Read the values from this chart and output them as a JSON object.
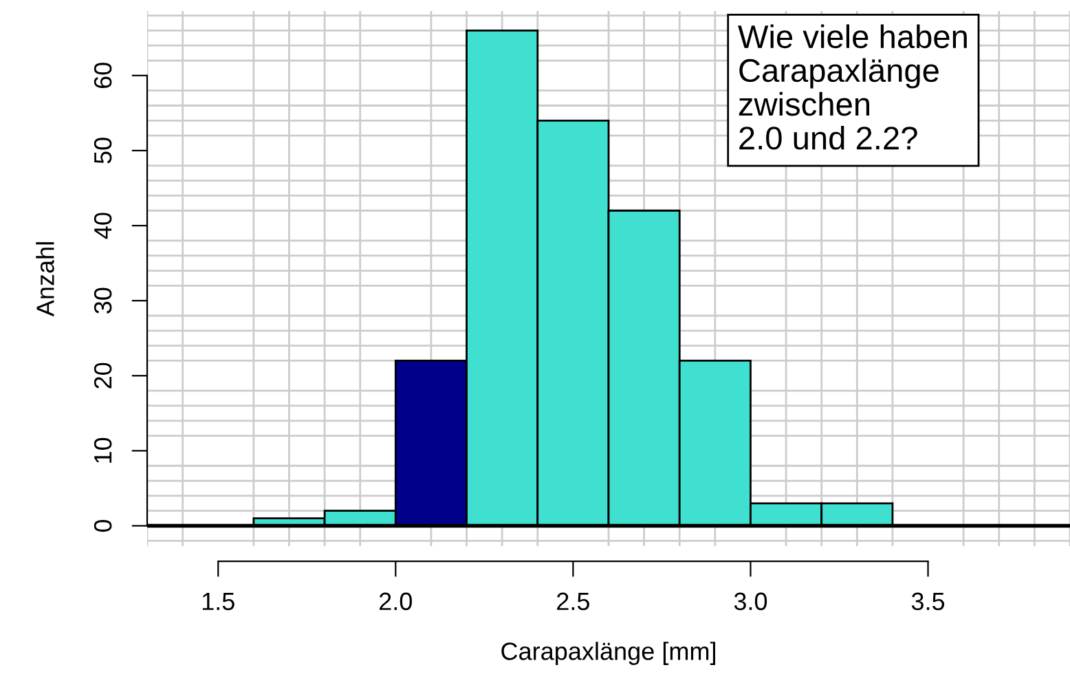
{
  "chart_data": {
    "type": "histogram",
    "xlabel": "Carapaxlänge [mm]",
    "ylabel": "Anzahl",
    "bins": [
      1.6,
      1.8,
      2.0,
      2.2,
      2.4,
      2.6,
      2.8,
      3.0,
      3.2,
      3.4
    ],
    "values": [
      1,
      2,
      22,
      66,
      54,
      42,
      22,
      3,
      3
    ],
    "colors": [
      "#40e0d0",
      "#40e0d0",
      "#00008b",
      "#40e0d0",
      "#40e0d0",
      "#40e0d0",
      "#40e0d0",
      "#40e0d0",
      "#40e0d0"
    ],
    "xlim": [
      1.3,
      3.9
    ],
    "ylim": [
      -2.7,
      68.6
    ],
    "xticks": [
      {
        "value": 1.5,
        "label": "1.5"
      },
      {
        "value": 2.0,
        "label": "2.0"
      },
      {
        "value": 2.5,
        "label": "2.5"
      },
      {
        "value": 3.0,
        "label": "3.0"
      },
      {
        "value": 3.5,
        "label": "3.5"
      }
    ],
    "yticks": [
      0,
      10,
      20,
      30,
      40,
      50,
      60
    ],
    "grid": true,
    "ref_lines": [
      {
        "axis": "y",
        "value": 0,
        "color": "#000000"
      }
    ],
    "annotations": [
      "Wie viele haben\nCarapaxlänge\nzwischen\n2.0 und 2.2?"
    ]
  }
}
